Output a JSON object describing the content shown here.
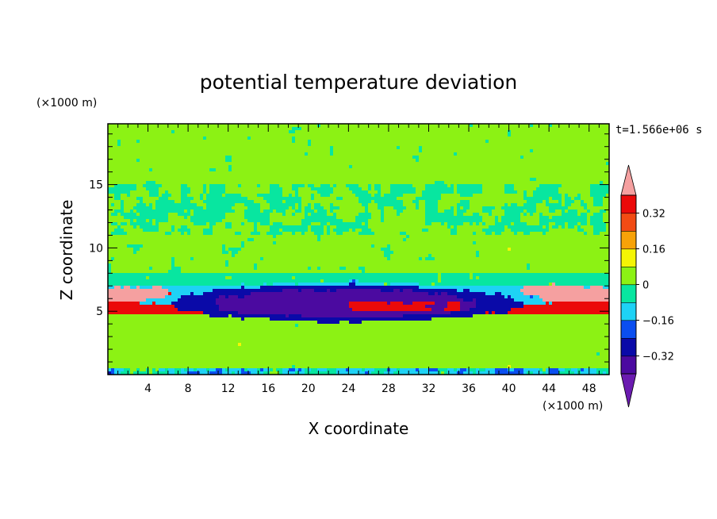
{
  "chart_data": {
    "type": "heatmap",
    "title": "potential temperature deviation",
    "xlabel": "X coordinate",
    "ylabel": "Z coordinate",
    "x_unit": "(×1000 m)",
    "z_unit": "(×1000 m)",
    "time_label": "t=1.566e+06 s",
    "xlim": [
      0,
      50
    ],
    "ylim": [
      0,
      19.8
    ],
    "x_ticks": [
      4,
      8,
      12,
      16,
      20,
      24,
      28,
      32,
      36,
      40,
      44,
      48
    ],
    "x_tick_labels": [
      "4",
      "8",
      "12",
      "16",
      "20",
      "24",
      "28",
      "32",
      "36",
      "40",
      "44",
      "48"
    ],
    "y_ticks": [
      5,
      10,
      15
    ],
    "y_tick_labels": [
      "5",
      "10",
      "15"
    ],
    "colorbar": {
      "levels": [
        -0.4,
        -0.32,
        -0.24,
        -0.16,
        -0.08,
        0,
        0.08,
        0.16,
        0.24,
        0.32,
        0.4
      ],
      "tick_values": [
        0.32,
        0.16,
        0,
        -0.16,
        -0.32
      ],
      "tick_labels": [
        "0.32",
        "0.16",
        "0",
        "−0.16",
        "−0.32"
      ],
      "bin_colors": [
        "#4b0aa0",
        "#0a0aa8",
        "#0a4ef0",
        "#1ed2f5",
        "#08e6a0",
        "#8cf214",
        "#f5f505",
        "#f7a208",
        "#f24b14",
        "#eb0a0a"
      ],
      "under_color": "#6b1bb0",
      "over_color": "#f5a0a0",
      "extend": "both"
    },
    "field_summary": [
      {
        "region": "upper layer z≈15–20",
        "value": 0.04
      },
      {
        "region": "layer z≈11–14",
        "value": 0.0
      },
      {
        "region": "mid layer z≈8–11",
        "value": 0.03
      },
      {
        "region": "layer z≈7–8",
        "value": -0.03
      },
      {
        "region": "layer z≈6.5–7",
        "value": -0.13
      },
      {
        "region": "strong layer z≈4.8–6",
        "value": 0.35
      },
      {
        "region": "edge caps x<6 and x>41, z≈6–7",
        "value": 0.45
      },
      {
        "region": "cold blob x≈6–41, z≈4.2–7",
        "value": -0.37
      },
      {
        "region": "lower layer z≈0.5–4",
        "value": 0.04
      }
    ]
  }
}
